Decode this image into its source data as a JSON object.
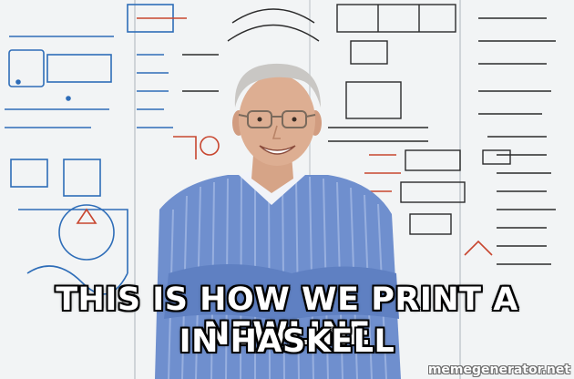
{
  "caption": {
    "line1": "THIS IS HOW WE PRINT A NEWLINE",
    "line2": "IN HASKELL"
  },
  "watermark": "memegenerator.net",
  "colors": {
    "marker_blue": "#2e6db8",
    "marker_red": "#c8462f",
    "marker_black": "#2b2b2b",
    "shirt_blue": "#6f8fce"
  }
}
